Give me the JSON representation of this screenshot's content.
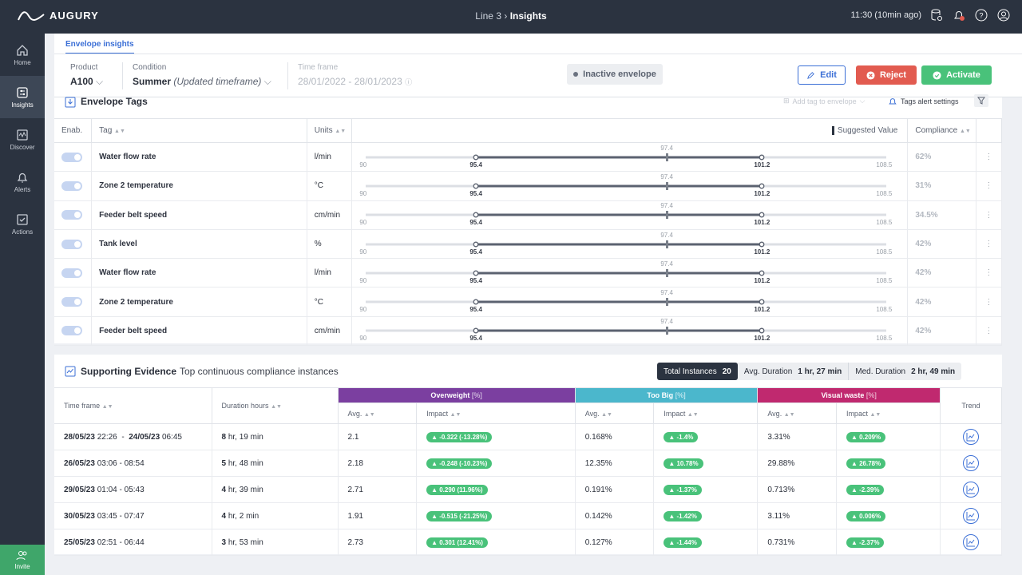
{
  "brand": "AUGURY",
  "breadcrumb": {
    "parent": "Line 3",
    "current": "Insights"
  },
  "topbar": {
    "time": "11:30 (10min ago)"
  },
  "sidebar": [
    {
      "label": "Home",
      "icon": "home-icon"
    },
    {
      "label": "Insights",
      "icon": "insights-icon",
      "active": true
    },
    {
      "label": "Discover",
      "icon": "discover-icon"
    },
    {
      "label": "Alerts",
      "icon": "bell-icon"
    },
    {
      "label": "Actions",
      "icon": "checkbox-icon"
    }
  ],
  "invite_label": "Invite",
  "header": {
    "tab": "Envelope insights",
    "product_label": "Product",
    "product_value": "A100",
    "condition_label": "Condition",
    "condition_value": "Summer",
    "condition_note": "(Updated timeframe)",
    "timeframe_label": "Time frame",
    "timeframe_value": "28/01/2022 - 28/01/2023",
    "status": "Inactive envelope",
    "edit": "Edit",
    "reject": "Reject",
    "activate": "Activate"
  },
  "tags_card": {
    "title": "Envelope Tags",
    "add_tag": "Add tag to envelope",
    "alert_settings": "Tags alert settings",
    "columns": {
      "enab": "Enab.",
      "tag": "Tag",
      "units": "Units",
      "suggested": "Suggested Value",
      "compliance": "Compliance"
    },
    "rows": [
      {
        "tag": "Water flow rate",
        "units": "l/min",
        "compliance": "62%"
      },
      {
        "tag": "Zone 2 temperature",
        "units": "°C",
        "compliance": "31%"
      },
      {
        "tag": "Feeder belt speed",
        "units": "cm/min",
        "compliance": "34.5%"
      },
      {
        "tag": "Tank level",
        "units": "%",
        "compliance": "42%"
      },
      {
        "tag": "Water flow rate",
        "units": "l/min",
        "compliance": "42%"
      },
      {
        "tag": "Zone 2 temperature",
        "units": "°C",
        "compliance": "42%"
      },
      {
        "tag": "Feeder belt speed",
        "units": "cm/min",
        "compliance": "42%"
      }
    ],
    "slider": {
      "min": "90",
      "max": "108.5",
      "low": "95.4",
      "high": "101.2",
      "suggested": "97.4"
    }
  },
  "evidence_card": {
    "title": "Supporting Evidence",
    "subtitle": "Top continuous compliance instances",
    "total_label": "Total Instances",
    "total_value": "20",
    "avg_label": "Avg. Duration",
    "avg_value": "1 hr, 27 min",
    "med_label": "Med. Duration",
    "med_value": "2 hr, 49 min",
    "columns": {
      "timeframe": "Time frame",
      "duration": "Duration hours",
      "overweight": "Overweight",
      "toobig": "Too Big",
      "visual": "Visual waste",
      "unit": "[%]",
      "avg": "Avg.",
      "impact": "Impact",
      "trend": "Trend"
    },
    "group_colors": {
      "overweight": "#7b3fa0",
      "toobig": "#4bb7cc",
      "visual": "#c0296f"
    },
    "rows": [
      {
        "date_a": "28/05/23",
        "time_a": "22:26",
        "sep": "-",
        "date_b": "24/05/23",
        "time_b": "06:45",
        "dur_h": "8",
        "dur_rest": "hr, 19 min",
        "ow_avg": "2.1",
        "ow_imp": "▲ -0.322 (-13.28%)",
        "tb_avg": "0.168%",
        "tb_imp": "▲ -1.4%",
        "vw_avg": "3.31%",
        "vw_imp": "▲ 0.209%"
      },
      {
        "date_a": "26/05/23",
        "time_a": "03:06 - 08:54",
        "dur_h": "5",
        "dur_rest": "hr, 48 min",
        "ow_avg": "2.18",
        "ow_imp": "▲ -0.248 (-10.23%)",
        "tb_avg": "12.35%",
        "tb_imp": "▲ 10.78%",
        "vw_avg": "29.88%",
        "vw_imp": "▲ 26.78%"
      },
      {
        "date_a": "29/05/23",
        "time_a": "01:04 - 05:43",
        "dur_h": "4",
        "dur_rest": "hr, 39 min",
        "ow_avg": "2.71",
        "ow_imp": "▲ 0.290 (11.96%)",
        "tb_avg": "0.191%",
        "tb_imp": "▲ -1.37%",
        "vw_avg": "0.713%",
        "vw_imp": "▲ -2.39%"
      },
      {
        "date_a": "30/05/23",
        "time_a": "03:45 - 07:47",
        "dur_h": "4",
        "dur_rest": "hr, 2 min",
        "ow_avg": "1.91",
        "ow_imp": "▲ -0.515 (-21.25%)",
        "tb_avg": "0.142%",
        "tb_imp": "▲ -1.42%",
        "vw_avg": "3.11%",
        "vw_imp": "▲ 0.006%"
      },
      {
        "date_a": "25/05/23",
        "time_a": "02:51 - 06:44",
        "dur_h": "3",
        "dur_rest": "hr, 53 min",
        "ow_avg": "2.73",
        "ow_imp": "▲ 0.301 (12.41%)",
        "tb_avg": "0.127%",
        "tb_imp": "▲ -1.44%",
        "vw_avg": "0.731%",
        "vw_imp": "▲ -2.37%"
      }
    ]
  }
}
